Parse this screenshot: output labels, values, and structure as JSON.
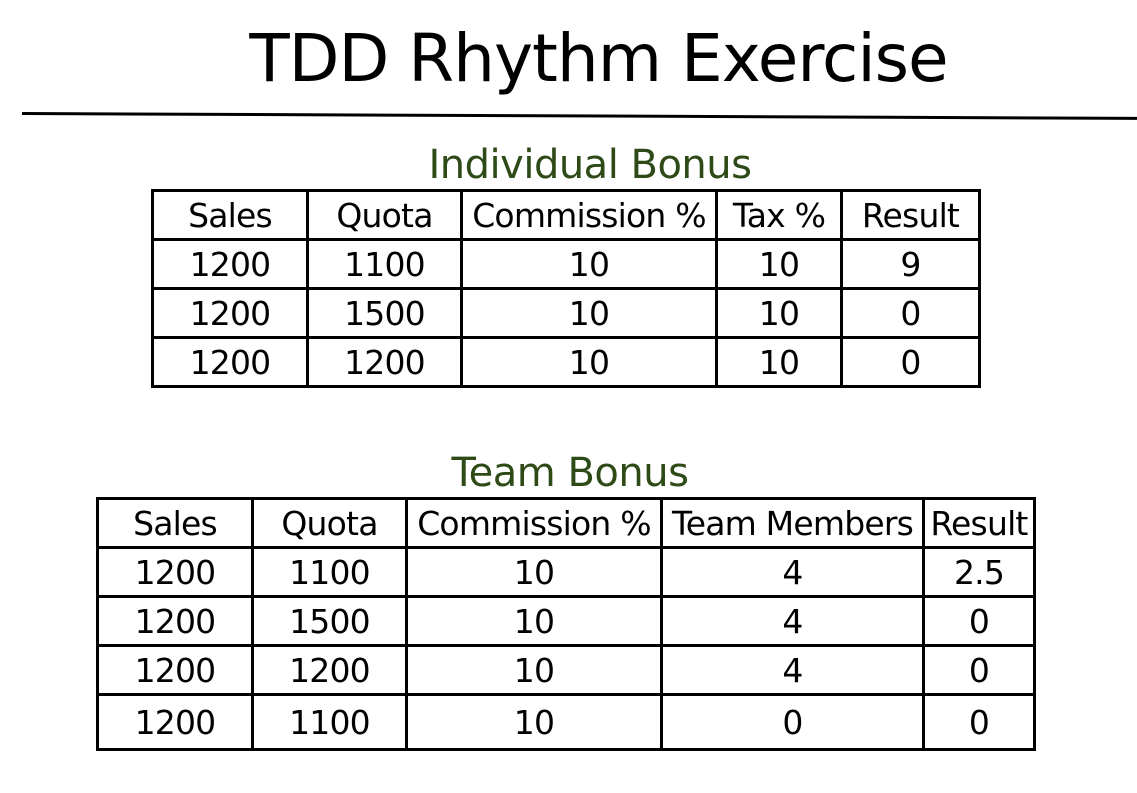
{
  "title": "TDD Rhythm Exercise",
  "individual_bonus": {
    "heading": "Individual Bonus",
    "columns": [
      "Sales",
      "Quota",
      "Commission %",
      "Tax %",
      "Result"
    ],
    "rows": [
      [
        "1200",
        "1100",
        "10",
        "10",
        "9"
      ],
      [
        "1200",
        "1500",
        "10",
        "10",
        "0"
      ],
      [
        "1200",
        "1200",
        "10",
        "10",
        "0"
      ]
    ]
  },
  "team_bonus": {
    "heading": "Team Bonus",
    "columns": [
      "Sales",
      "Quota",
      "Commission %",
      "Team Members",
      "Result"
    ],
    "rows": [
      [
        "1200",
        "1100",
        "10",
        "4",
        "2.5"
      ],
      [
        "1200",
        "1500",
        "10",
        "4",
        "0"
      ],
      [
        "1200",
        "1200",
        "10",
        "4",
        "0"
      ],
      [
        "1200",
        "1100",
        "10",
        "0",
        "0"
      ]
    ]
  },
  "colors": {
    "heading": "#2e4a17",
    "text": "#000000",
    "background": "#ffffff"
  }
}
